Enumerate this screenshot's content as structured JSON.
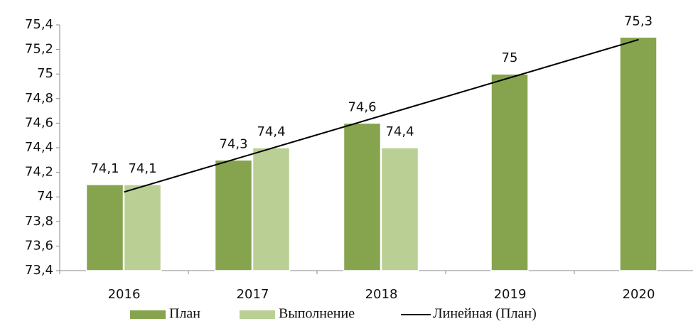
{
  "chart_data": {
    "type": "bar",
    "categories": [
      "2016",
      "2017",
      "2018",
      "2019",
      "2020"
    ],
    "series": [
      {
        "name": "План",
        "color": "#86a44e",
        "values": [
          74.1,
          74.3,
          74.6,
          75,
          75.3
        ],
        "value_labels": [
          "74,1",
          "74,3",
          "74,6",
          "75",
          "75,3"
        ]
      },
      {
        "name": "Выполнение",
        "color": "#bacf94",
        "values": [
          74.1,
          74.4,
          74.4,
          null,
          null
        ],
        "value_labels": [
          "74,1",
          "74,4",
          "74,4",
          null,
          null
        ]
      },
      {
        "name": "Линейная (План)",
        "type": "line",
        "color": "#000000",
        "values": [
          74.04,
          74.35,
          74.66,
          74.97,
          75.28
        ]
      }
    ],
    "ylim": [
      73.4,
      75.4
    ],
    "yticks": [
      {
        "value": 73.4,
        "label": "73,4"
      },
      {
        "value": 73.6,
        "label": "73,6"
      },
      {
        "value": 73.8,
        "label": "73,8"
      },
      74,
      {
        "value": 74.2,
        "label": "74,2"
      },
      {
        "value": 74.4,
        "label": "74,4"
      },
      {
        "value": 74.6,
        "label": "74,6"
      },
      {
        "value": 74.8,
        "label": "74,8"
      },
      75,
      {
        "value": 75.2,
        "label": "75,2"
      },
      {
        "value": 75.4,
        "label": "75,4"
      }
    ],
    "legend": "bottom"
  }
}
